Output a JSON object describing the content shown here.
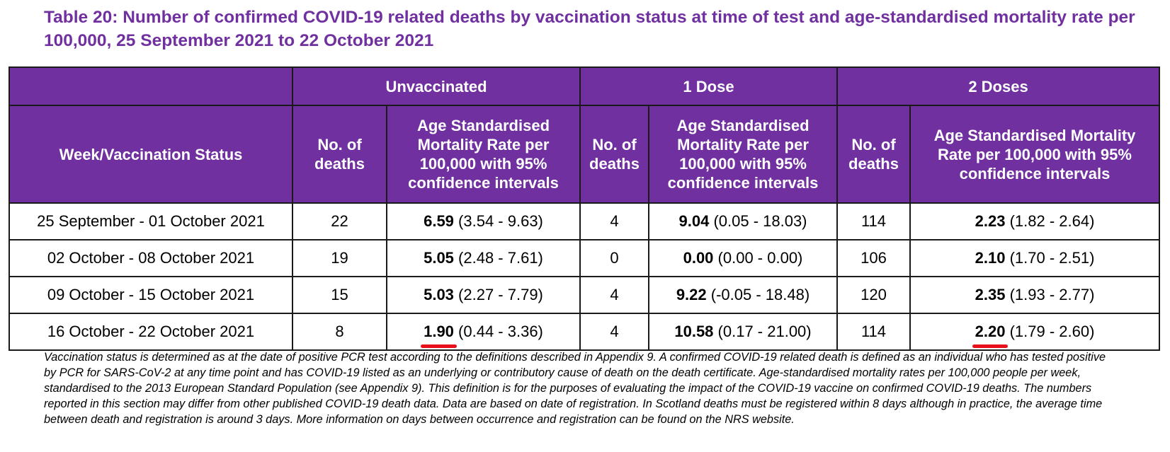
{
  "title": "Table 20: Number of confirmed COVID-19 related deaths by vaccination status at time of test and age-standardised mortality rate per 100,000, 25 September 2021 to 22 October 2021",
  "groups": {
    "unvaccinated": "Unvaccinated",
    "one_dose": "1 Dose",
    "two_doses": "2 Doses"
  },
  "columns": {
    "week": "Week/Vaccination Status",
    "deaths": "No. of deaths",
    "rate": "Age Standardised Mortality Rate per 100,000 with 95% confidence intervals"
  },
  "rows": [
    {
      "week": "25 September - 01 October 2021",
      "unvax_deaths": "22",
      "unvax_rate": "6.59",
      "unvax_ci": "(3.54 - 9.63)",
      "dose1_deaths": "4",
      "dose1_rate": "9.04",
      "dose1_ci": "(0.05 - 18.03)",
      "dose2_deaths": "114",
      "dose2_rate": "2.23",
      "dose2_ci": "(1.82 - 2.64)"
    },
    {
      "week": "02 October - 08 October 2021",
      "unvax_deaths": "19",
      "unvax_rate": "5.05",
      "unvax_ci": "(2.48 - 7.61)",
      "dose1_deaths": "0",
      "dose1_rate": "0.00",
      "dose1_ci": "(0.00 - 0.00)",
      "dose2_deaths": "106",
      "dose2_rate": "2.10",
      "dose2_ci": "(1.70 - 2.51)"
    },
    {
      "week": "09 October - 15 October 2021",
      "unvax_deaths": "15",
      "unvax_rate": "5.03",
      "unvax_ci": "(2.27 - 7.79)",
      "dose1_deaths": "4",
      "dose1_rate": "9.22",
      "dose1_ci": "(-0.05 - 18.48)",
      "dose2_deaths": "120",
      "dose2_rate": "2.35",
      "dose2_ci": "(1.93 - 2.77)"
    },
    {
      "week": "16 October - 22 October 2021",
      "unvax_deaths": "8",
      "unvax_rate": "1.90",
      "unvax_ci": "(0.44 - 3.36)",
      "dose1_deaths": "4",
      "dose1_rate": "10.58",
      "dose1_ci": "(0.17 - 21.00)",
      "dose2_deaths": "114",
      "dose2_rate": "2.20",
      "dose2_ci": "(1.79 - 2.60)"
    }
  ],
  "footnote": "Vaccination status is determined as at the date of positive PCR test according to the definitions described in Appendix 9. A confirmed COVID-19 related death is defined as an individual who has tested positive by PCR for SARS-CoV-2 at any time point and has COVID-19 listed as an underlying or contributory cause of death on the death certificate. Age-standardised mortality rates per 100,000 people per week, standardised to the 2013 European Standard Population (see Appendix 9). This definition is for the purposes of evaluating the impact of the COVID-19 vaccine on confirmed COVID-19 deaths. The numbers reported in this section may differ from other published COVID-19 death data. Data are based on date of registration. In Scotland deaths must be registered within 8 days although in practice, the average time between death and registration is around 3 days. More information on days between occurrence and registration can be found on the NRS website.",
  "colors": {
    "header_bg": "#7030a0",
    "title_color": "#7030a0",
    "underline_red": "#e8101b"
  }
}
